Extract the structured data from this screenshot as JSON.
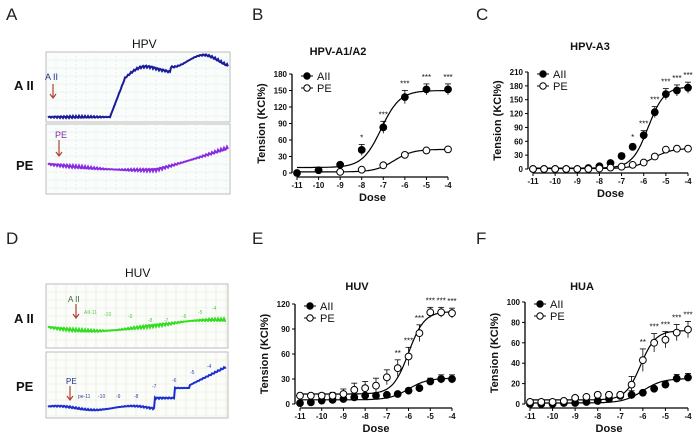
{
  "panels": {
    "A": {
      "label": "A",
      "title": "HPV",
      "row_labels": [
        "A II",
        "PE"
      ],
      "arrow_labels": [
        "A II",
        "PE"
      ],
      "trace_colors": [
        "#1a1a9a",
        "#8a2be2"
      ]
    },
    "D": {
      "label": "D",
      "title": "HUV",
      "row_labels": [
        "A II",
        "PE"
      ],
      "arrow_labels": [
        "A II",
        "PE"
      ],
      "trace_colors": [
        "#33dd22",
        "#1a2fd0"
      ],
      "dose_marks_top": [
        "AII-11",
        "-10",
        "-9",
        "-8",
        "-7",
        "-6",
        "-5",
        "-4"
      ],
      "dose_marks_bottom": [
        "pe-11",
        "-10",
        "-9",
        "-8",
        "-7",
        "-6",
        "-5",
        "-4"
      ]
    }
  },
  "chart_data": [
    {
      "panel": "B",
      "type": "line",
      "title": "HPV-A1/A2",
      "xlabel": "Dose",
      "ylabel": "Tension (KCl%)",
      "xlim": [
        -11,
        -4
      ],
      "ylim": [
        0,
        180
      ],
      "yticks": [
        0,
        30,
        60,
        90,
        120,
        150,
        180
      ],
      "xticks": [
        -11,
        -10,
        -9,
        -8,
        -7,
        -6,
        -5,
        -4
      ],
      "legend": "top-left",
      "series": [
        {
          "name": "AII",
          "marker": "filled",
          "x": [
            -11,
            -10,
            -9,
            -8,
            -7,
            -6,
            -5,
            -4
          ],
          "values": [
            0,
            5,
            15,
            42,
            83,
            138,
            152,
            152
          ],
          "errors": [
            2,
            3,
            4,
            10,
            11,
            12,
            10,
            10
          ],
          "fit": {
            "bottom": 10,
            "top": 150,
            "logEC50": -7.1,
            "hill": 1
          }
        },
        {
          "name": "PE",
          "marker": "open",
          "x": [
            -9,
            -8,
            -7,
            -6,
            -5,
            -4
          ],
          "values": [
            2,
            6,
            14,
            33,
            41,
            43
          ],
          "errors": [
            1,
            1,
            2,
            4,
            3,
            3
          ],
          "fit": {
            "bottom": 2,
            "top": 43,
            "logEC50": -6.5,
            "hill": 1
          }
        }
      ],
      "annotations": [
        {
          "x": -8,
          "text": "*"
        },
        {
          "x": -7,
          "text": "***"
        },
        {
          "x": -6,
          "text": "***"
        },
        {
          "x": -5,
          "text": "***"
        },
        {
          "x": -4,
          "text": "***"
        }
      ]
    },
    {
      "panel": "C",
      "type": "line",
      "title": "HPV-A3",
      "xlabel": "Dose",
      "ylabel": "Tension (KCl%)",
      "xlim": [
        -11,
        -4
      ],
      "ylim": [
        0,
        210
      ],
      "yticks": [
        0,
        30,
        60,
        90,
        120,
        150,
        180,
        210
      ],
      "xticks": [
        -11,
        -10,
        -9,
        -8,
        -7,
        -6,
        -5,
        -4
      ],
      "legend": "top-left",
      "series": [
        {
          "name": "AII",
          "marker": "filled",
          "x": [
            -11,
            -10.5,
            -10,
            -9.5,
            -9,
            -8.5,
            -8,
            -7.5,
            -7,
            -6.5,
            -6,
            -5.5,
            -5,
            -4.5,
            -4
          ],
          "values": [
            0,
            0,
            0,
            0,
            0,
            2,
            6,
            13,
            28,
            48,
            73,
            123,
            162,
            170,
            176
          ],
          "errors": [
            1,
            1,
            1,
            1,
            1,
            2,
            3,
            4,
            6,
            6,
            10,
            12,
            12,
            12,
            12
          ],
          "fit": {
            "bottom": 2,
            "top": 178,
            "logEC50": -5.8,
            "hill": 1.2
          }
        },
        {
          "name": "PE",
          "marker": "open",
          "x": [
            -11,
            -10.5,
            -10,
            -9.5,
            -9,
            -8.5,
            -8,
            -7.5,
            -7,
            -6.5,
            -6,
            -5.5,
            -5,
            -4.5,
            -4
          ],
          "values": [
            0,
            0,
            0,
            0,
            0,
            0,
            1,
            3,
            5,
            9,
            14,
            27,
            42,
            44,
            44
          ],
          "errors": [
            1,
            1,
            1,
            1,
            1,
            1,
            1,
            1,
            1,
            2,
            2,
            3,
            3,
            3,
            3
          ],
          "fit": {
            "bottom": 1,
            "top": 45,
            "logEC50": -5.6,
            "hill": 1
          }
        }
      ],
      "annotations": [
        {
          "x": -6.5,
          "text": "*"
        },
        {
          "x": -6,
          "text": "***"
        },
        {
          "x": -5.5,
          "text": "***"
        },
        {
          "x": -5,
          "text": "***"
        },
        {
          "x": -4.5,
          "text": "***"
        },
        {
          "x": -4,
          "text": "***"
        }
      ]
    },
    {
      "panel": "E",
      "type": "line",
      "title": "HUV",
      "xlabel": "Dose",
      "ylabel": "Tension (KCl%)",
      "xlim": [
        -11,
        -4
      ],
      "ylim": [
        0,
        120
      ],
      "yticks": [
        0,
        30,
        60,
        90,
        120
      ],
      "xticks": [
        -11,
        -10,
        -9,
        -8,
        -7,
        -6,
        -5,
        -4
      ],
      "legend": "top-left",
      "series": [
        {
          "name": "AII",
          "marker": "filled",
          "x": [
            -11,
            -10.5,
            -10,
            -9.5,
            -9,
            -8.5,
            -8,
            -7.5,
            -7,
            -6.5,
            -6,
            -5.5,
            -5,
            -4.5,
            -4
          ],
          "values": [
            1,
            2,
            4,
            5,
            6,
            8,
            10,
            10,
            11,
            12,
            16,
            19,
            27,
            30,
            30
          ],
          "errors": [
            2,
            3,
            3,
            3,
            3,
            3,
            3,
            3,
            2,
            2,
            2,
            3,
            4,
            5,
            5
          ],
          "fit": {
            "bottom": 5,
            "top": 31,
            "logEC50": -6,
            "hill": 1
          }
        },
        {
          "name": "PE",
          "marker": "open",
          "x": [
            -11,
            -10.5,
            -10,
            -9.5,
            -9,
            -8.5,
            -8,
            -7.5,
            -7,
            -6.5,
            -6,
            -5.5,
            -5,
            -4.5,
            -4
          ],
          "values": [
            10,
            10,
            10,
            10,
            12,
            17,
            19,
            22,
            32,
            43,
            57,
            85,
            110,
            110,
            109
          ],
          "errors": [
            2,
            2,
            3,
            4,
            6,
            8,
            8,
            9,
            9,
            10,
            11,
            10,
            6,
            6,
            6
          ],
          "fit": {
            "bottom": 12,
            "top": 111,
            "logEC50": -6,
            "hill": 1.2
          }
        }
      ],
      "annotations": [
        {
          "x": -6.5,
          "text": "**"
        },
        {
          "x": -6,
          "text": "***"
        },
        {
          "x": -5.5,
          "text": "***"
        },
        {
          "x": -5,
          "text": "***"
        },
        {
          "x": -4.5,
          "text": "***"
        },
        {
          "x": -4,
          "text": "***"
        }
      ]
    },
    {
      "panel": "F",
      "type": "line",
      "title": "HUA",
      "xlabel": "Dose",
      "ylabel": "Tension (KCl%)",
      "xlim": [
        -11,
        -4
      ],
      "ylim": [
        0,
        100
      ],
      "yticks": [
        0,
        20,
        40,
        60,
        80,
        100
      ],
      "xticks": [
        -11,
        -10,
        -9,
        -8,
        -7,
        -6,
        -5,
        -4
      ],
      "legend": "top-left",
      "series": [
        {
          "name": "AII",
          "marker": "filled",
          "x": [
            -11,
            -10.5,
            -10,
            -9.5,
            -9,
            -8.5,
            -8,
            -7.5,
            -7,
            -6.5,
            -6,
            -5.5,
            -5,
            -4.5,
            -4
          ],
          "values": [
            0,
            0,
            0,
            1,
            1,
            2,
            3,
            5,
            8,
            9,
            11,
            15,
            19,
            25,
            26
          ],
          "errors": [
            1,
            1,
            1,
            1,
            1,
            1,
            2,
            2,
            3,
            4,
            2,
            2,
            3,
            4,
            4
          ],
          "fit": {
            "bottom": 1,
            "top": 25,
            "logEC50": -6,
            "hill": 1
          }
        },
        {
          "name": "PE",
          "marker": "open",
          "x": [
            -11,
            -10.5,
            -10,
            -9.5,
            -9,
            -8.5,
            -8,
            -7.5,
            -7,
            -6.5,
            -6,
            -5.5,
            -5,
            -4.5,
            -4
          ],
          "values": [
            2,
            2,
            2,
            3,
            6,
            7,
            9,
            9,
            9,
            19,
            43,
            60,
            63,
            70,
            73
          ],
          "errors": [
            1,
            1,
            1,
            1,
            1,
            1,
            1,
            1,
            2,
            8,
            11,
            9,
            8,
            8,
            8
          ],
          "fit": {
            "bottom": 4,
            "top": 72,
            "logEC50": -6.1,
            "hill": 1.3
          }
        }
      ],
      "annotations": [
        {
          "x": -6,
          "text": "**"
        },
        {
          "x": -5.5,
          "text": "***"
        },
        {
          "x": -5,
          "text": "***"
        },
        {
          "x": -4.5,
          "text": "***"
        },
        {
          "x": -4,
          "text": "***"
        }
      ]
    }
  ]
}
